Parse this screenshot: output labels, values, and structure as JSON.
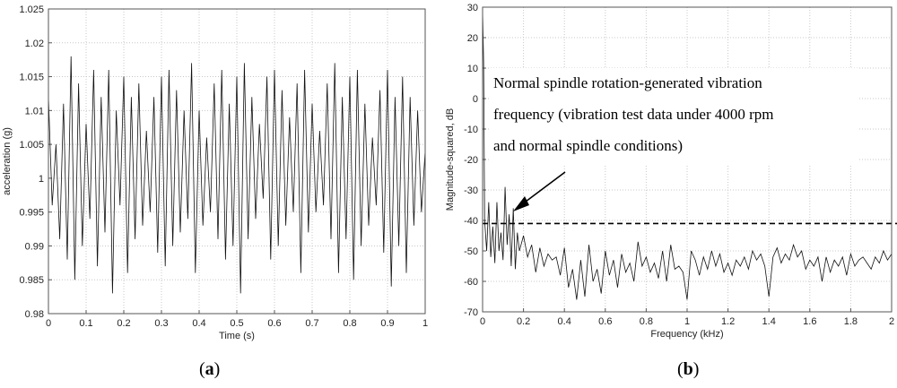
{
  "panels": {
    "a": {
      "label": "a"
    },
    "b": {
      "label": "b"
    }
  },
  "chart_data": [
    {
      "type": "line",
      "title": "",
      "xlabel": "Time (s)",
      "ylabel": "acceleration (g)",
      "xlim": [
        0,
        1
      ],
      "ylim": [
        0.98,
        1.025
      ],
      "xticks": [
        0,
        0.1,
        0.2,
        0.3,
        0.4,
        0.5,
        0.6,
        0.7,
        0.8,
        0.9,
        1
      ],
      "yticks": [
        0.98,
        0.985,
        0.99,
        0.995,
        1,
        1.005,
        1.01,
        1.015,
        1.02,
        1.025
      ],
      "grid": true,
      "x": [
        0,
        0.01,
        0.02,
        0.03,
        0.04,
        0.05,
        0.06,
        0.07,
        0.08,
        0.09,
        0.1,
        0.11,
        0.12,
        0.13,
        0.14,
        0.15,
        0.16,
        0.17,
        0.18,
        0.19,
        0.2,
        0.21,
        0.22,
        0.23,
        0.24,
        0.25,
        0.26,
        0.27,
        0.28,
        0.29,
        0.3,
        0.31,
        0.32,
        0.33,
        0.34,
        0.35,
        0.36,
        0.37,
        0.38,
        0.39,
        0.4,
        0.41,
        0.42,
        0.43,
        0.44,
        0.45,
        0.46,
        0.47,
        0.48,
        0.49,
        0.5,
        0.51,
        0.52,
        0.53,
        0.54,
        0.55,
        0.56,
        0.57,
        0.58,
        0.59,
        0.6,
        0.61,
        0.62,
        0.63,
        0.64,
        0.65,
        0.66,
        0.67,
        0.68,
        0.69,
        0.7,
        0.71,
        0.72,
        0.73,
        0.74,
        0.75,
        0.76,
        0.77,
        0.78,
        0.79,
        0.8,
        0.81,
        0.82,
        0.83,
        0.84,
        0.85,
        0.86,
        0.87,
        0.88,
        0.89,
        0.9,
        0.91,
        0.92,
        0.93,
        0.94,
        0.95,
        0.96,
        0.97,
        0.98,
        0.99,
        1
      ],
      "series": [
        {
          "values": [
            1.012,
            0.996,
            1.005,
            0.991,
            1.011,
            0.988,
            1.018,
            0.985,
            1.014,
            0.99,
            1.008,
            0.994,
            1.016,
            0.987,
            1.012,
            0.992,
            1.016,
            0.983,
            1.01,
            0.996,
            1.015,
            0.986,
            1.012,
            0.991,
            1.014,
            0.993,
            1.007,
            0.995,
            1.012,
            0.989,
            1.015,
            0.987,
            1.016,
            0.99,
            1.013,
            0.992,
            1.01,
            0.994,
            1.017,
            0.986,
            1.01,
            0.993,
            1.006,
            0.995,
            1.014,
            0.991,
            1.016,
            0.988,
            1.011,
            0.99,
            1.015,
            0.983,
            1.017,
            0.991,
            1.012,
            0.994,
            1.008,
            0.997,
            1.015,
            0.988,
            1.016,
            0.99,
            1.013,
            0.993,
            1.009,
            0.995,
            1.014,
            0.986,
            1.016,
            0.992,
            1.011,
            0.995,
            1.007,
            0.996,
            1.014,
            0.991,
            1.017,
            0.986,
            1.012,
            0.991,
            1.015,
            0.985,
            1.016,
            0.99,
            1.011,
            0.993,
            1.006,
            0.996,
            1.013,
            0.989,
            1.016,
            0.984,
            1.012,
            0.99,
            1.015,
            0.986,
            1.012,
            0.993,
            1.01,
            0.995,
            1.004
          ]
        }
      ]
    },
    {
      "type": "line",
      "title": "",
      "xlabel": "Frequency (kHz)",
      "ylabel": "Magnitude-squared, dB",
      "xlim": [
        0,
        2
      ],
      "ylim": [
        -70,
        30
      ],
      "xticks": [
        0,
        0.2,
        0.4,
        0.6,
        0.8,
        1,
        1.2,
        1.4,
        1.6,
        1.8,
        2
      ],
      "yticks": [
        -70,
        -60,
        -50,
        -40,
        -30,
        -20,
        -10,
        0,
        10,
        20,
        30
      ],
      "grid": true,
      "threshold_db": -41,
      "annotation": {
        "lines": [
          "Normal spindle rotation-generated vibration",
          "frequency (vibration test data under 4000 rpm",
          "and normal spindle conditions)"
        ]
      },
      "x": [
        0,
        0.005,
        0.01,
        0.02,
        0.03,
        0.04,
        0.05,
        0.06,
        0.07,
        0.08,
        0.09,
        0.1,
        0.11,
        0.12,
        0.13,
        0.14,
        0.15,
        0.16,
        0.17,
        0.18,
        0.2,
        0.22,
        0.24,
        0.26,
        0.28,
        0.3,
        0.32,
        0.34,
        0.36,
        0.38,
        0.4,
        0.42,
        0.44,
        0.46,
        0.48,
        0.5,
        0.52,
        0.54,
        0.56,
        0.58,
        0.6,
        0.62,
        0.64,
        0.66,
        0.68,
        0.7,
        0.72,
        0.74,
        0.76,
        0.78,
        0.8,
        0.82,
        0.84,
        0.86,
        0.88,
        0.9,
        0.92,
        0.94,
        0.96,
        0.98,
        1,
        1.02,
        1.04,
        1.06,
        1.08,
        1.1,
        1.12,
        1.14,
        1.16,
        1.18,
        1.2,
        1.22,
        1.24,
        1.26,
        1.28,
        1.3,
        1.32,
        1.34,
        1.36,
        1.38,
        1.4,
        1.42,
        1.44,
        1.46,
        1.48,
        1.5,
        1.52,
        1.54,
        1.56,
        1.58,
        1.6,
        1.62,
        1.64,
        1.66,
        1.68,
        1.7,
        1.72,
        1.74,
        1.76,
        1.78,
        1.8,
        1.82,
        1.84,
        1.86,
        1.88,
        1.9,
        1.92,
        1.94,
        1.96,
        1.98,
        2
      ],
      "series": [
        {
          "values": [
            29,
            12,
            -40,
            -50,
            -34,
            -52,
            -42,
            -54,
            -34,
            -50,
            -44,
            -53,
            -29,
            -48,
            -38,
            -55,
            -36,
            -56,
            -44,
            -50,
            -45,
            -52,
            -48,
            -57,
            -49,
            -55,
            -51,
            -53,
            -52,
            -58,
            -49,
            -62,
            -56,
            -66,
            -53,
            -65,
            -48,
            -60,
            -56,
            -64,
            -50,
            -58,
            -53,
            -62,
            -51,
            -57,
            -54,
            -60,
            -47,
            -55,
            -52,
            -57,
            -54,
            -59,
            -50,
            -60,
            -48,
            -56,
            -55,
            -57,
            -66,
            -50,
            -53,
            -58,
            -52,
            -56,
            -50,
            -55,
            -51,
            -57,
            -54,
            -58,
            -53,
            -55,
            -52,
            -56,
            -50,
            -53,
            -51,
            -55,
            -65,
            -52,
            -49,
            -54,
            -51,
            -53,
            -48,
            -52,
            -50,
            -56,
            -53,
            -55,
            -52,
            -60,
            -52,
            -57,
            -53,
            -55,
            -52,
            -58,
            -51,
            -55,
            -53,
            -52,
            -54,
            -56,
            -52,
            -54,
            -50,
            -53,
            -51
          ]
        }
      ]
    }
  ]
}
